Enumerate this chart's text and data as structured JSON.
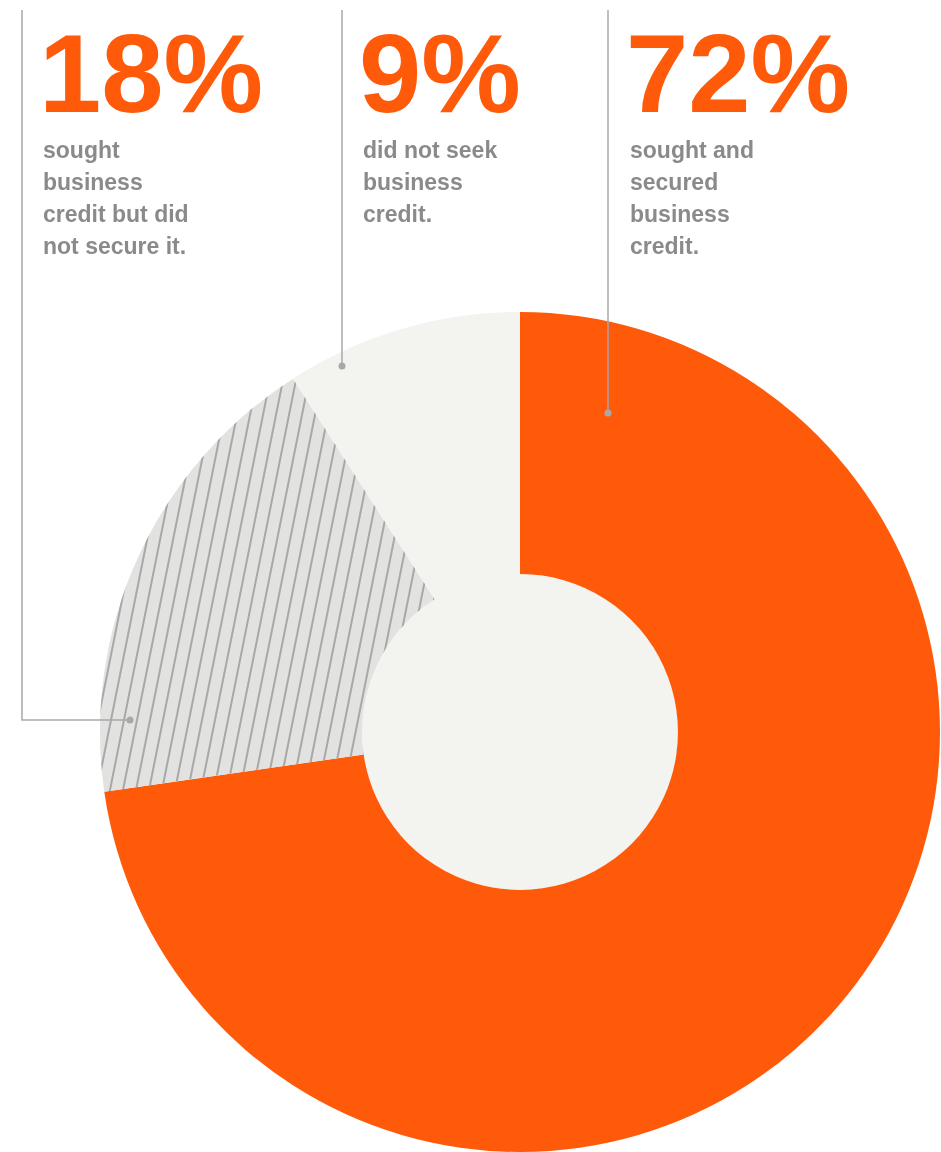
{
  "chart_data": {
    "type": "donut",
    "categories": [
      "sought and secured business credit.",
      "sought business credit but did not secure it.",
      "did not seek business credit."
    ],
    "values": [
      72,
      18,
      9
    ],
    "colors": [
      "#ff5a0a",
      "#e2e2e0",
      "#f3f3ef"
    ],
    "value_labels": [
      "72%",
      "18%",
      "9%"
    ],
    "legend": false
  }
}
